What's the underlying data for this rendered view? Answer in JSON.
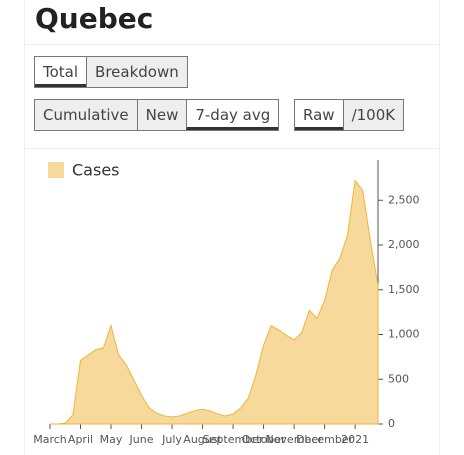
{
  "header": {
    "title": "Quebec"
  },
  "button_groups": [
    {
      "buttons": [
        "Total",
        "Breakdown"
      ],
      "selected": 0
    },
    {
      "buttons": [
        "Cumulative",
        "New",
        "7-day avg"
      ],
      "selected": 2
    },
    {
      "buttons": [
        "Raw",
        "/100K"
      ],
      "selected": 0
    }
  ],
  "chart_data": {
    "type": "area",
    "categories": [
      "March",
      null,
      null,
      null,
      "April",
      null,
      null,
      null,
      "May",
      null,
      null,
      null,
      "June",
      null,
      null,
      null,
      "July",
      null,
      null,
      null,
      "August",
      null,
      null,
      null,
      "September",
      null,
      null,
      null,
      "October",
      null,
      null,
      null,
      "November",
      null,
      null,
      null,
      "December",
      null,
      null,
      null,
      "2021",
      null,
      null,
      null
    ],
    "series": [
      {
        "name": "Cases",
        "color": "#f0b43a",
        "values": [
          0,
          0,
          10,
          100,
          710,
          770,
          830,
          850,
          1100,
          770,
          660,
          490,
          320,
          180,
          120,
          90,
          80,
          90,
          120,
          150,
          165,
          145,
          110,
          90,
          110,
          180,
          290,
          550,
          880,
          1100,
          1050,
          990,
          940,
          1020,
          1270,
          1180,
          1380,
          1720,
          1850,
          2110,
          2720,
          2610,
          2050,
          1550
        ]
      }
    ],
    "ylim": [
      0,
      2950
    ],
    "yticks": [
      0,
      500,
      {
        "value": 1000,
        "label": "1,000"
      },
      {
        "value": 1500,
        "label": "1,500"
      },
      {
        "value": 2000,
        "label": "2,000"
      },
      {
        "value": 2500,
        "label": "2,500"
      }
    ],
    "y_axis_side": "right"
  }
}
